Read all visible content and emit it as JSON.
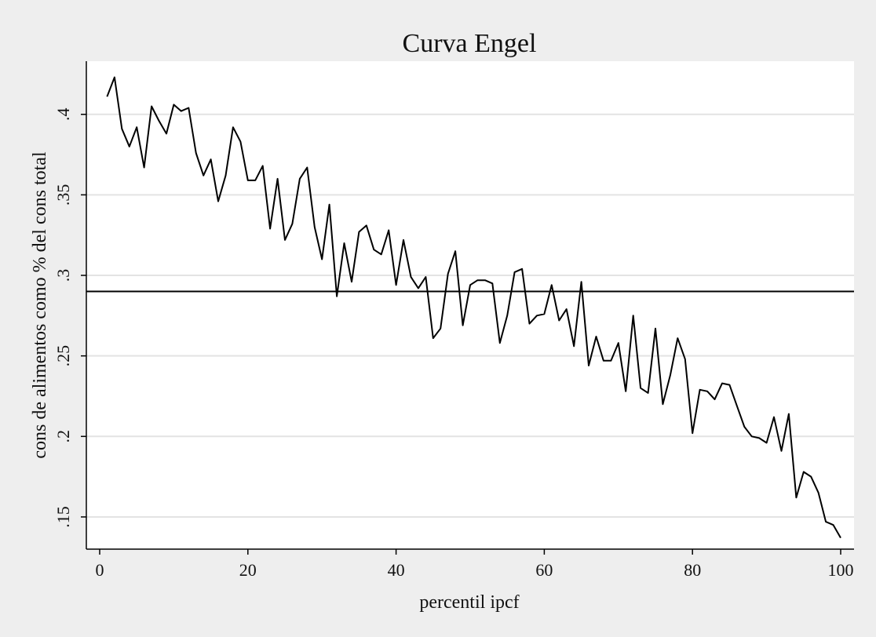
{
  "chart_data": {
    "type": "line",
    "title": "Curva Engel",
    "xlabel": "percentil ipcf",
    "ylabel": "cons de alimentos como % del cons total",
    "xlim": [
      -1.8,
      101.8
    ],
    "ylim": [
      0.13,
      0.433
    ],
    "xticks": [
      0,
      20,
      40,
      60,
      80,
      100
    ],
    "xtick_labels": [
      "0",
      "20",
      "40",
      "60",
      "80",
      "100"
    ],
    "yticks": [
      0.15,
      0.2,
      0.25,
      0.3,
      0.35,
      0.4
    ],
    "ytick_labels": [
      ".15",
      ".2",
      ".25",
      ".3",
      ".35",
      ".4"
    ],
    "grid": true,
    "reference_line_y": 0.29,
    "series": [
      {
        "color": "#000000",
        "x": [
          1,
          2,
          3,
          4,
          5,
          6,
          7,
          8,
          9,
          10,
          11,
          12,
          13,
          14,
          15,
          16,
          17,
          18,
          19,
          20,
          21,
          22,
          23,
          24,
          25,
          26,
          27,
          28,
          29,
          30,
          31,
          32,
          33,
          34,
          35,
          36,
          37,
          38,
          39,
          40,
          41,
          42,
          43,
          44,
          45,
          46,
          47,
          48,
          49,
          50,
          51,
          52,
          53,
          54,
          55,
          56,
          57,
          58,
          59,
          60,
          61,
          62,
          63,
          64,
          65,
          66,
          67,
          68,
          69,
          70,
          71,
          72,
          73,
          74,
          75,
          76,
          77,
          78,
          79,
          80,
          81,
          82,
          83,
          84,
          85,
          86,
          87,
          88,
          89,
          90,
          91,
          92,
          93,
          94,
          95,
          96,
          97,
          98,
          99,
          100
        ],
        "y": [
          0.411,
          0.423,
          0.391,
          0.38,
          0.392,
          0.367,
          0.405,
          0.396,
          0.388,
          0.406,
          0.402,
          0.404,
          0.376,
          0.362,
          0.372,
          0.346,
          0.362,
          0.392,
          0.383,
          0.359,
          0.359,
          0.368,
          0.329,
          0.36,
          0.322,
          0.332,
          0.36,
          0.367,
          0.33,
          0.31,
          0.344,
          0.287,
          0.32,
          0.296,
          0.327,
          0.331,
          0.316,
          0.313,
          0.328,
          0.294,
          0.322,
          0.299,
          0.292,
          0.299,
          0.261,
          0.267,
          0.301,
          0.315,
          0.269,
          0.294,
          0.297,
          0.297,
          0.295,
          0.258,
          0.275,
          0.302,
          0.304,
          0.27,
          0.275,
          0.276,
          0.294,
          0.272,
          0.279,
          0.256,
          0.296,
          0.244,
          0.262,
          0.247,
          0.247,
          0.258,
          0.228,
          0.275,
          0.23,
          0.227,
          0.267,
          0.22,
          0.238,
          0.261,
          0.248,
          0.202,
          0.229,
          0.228,
          0.223,
          0.233,
          0.232,
          0.219,
          0.206,
          0.2,
          0.199,
          0.196,
          0.212,
          0.191,
          0.214,
          0.162,
          0.178,
          0.175,
          0.165,
          0.147,
          0.145,
          0.137
        ]
      }
    ]
  },
  "colors": {
    "outer_background": "#eeeeee",
    "plot_background": "#ffffff",
    "grid": "#e3e3e3",
    "line": "#000000",
    "reference_line": "#000000"
  }
}
